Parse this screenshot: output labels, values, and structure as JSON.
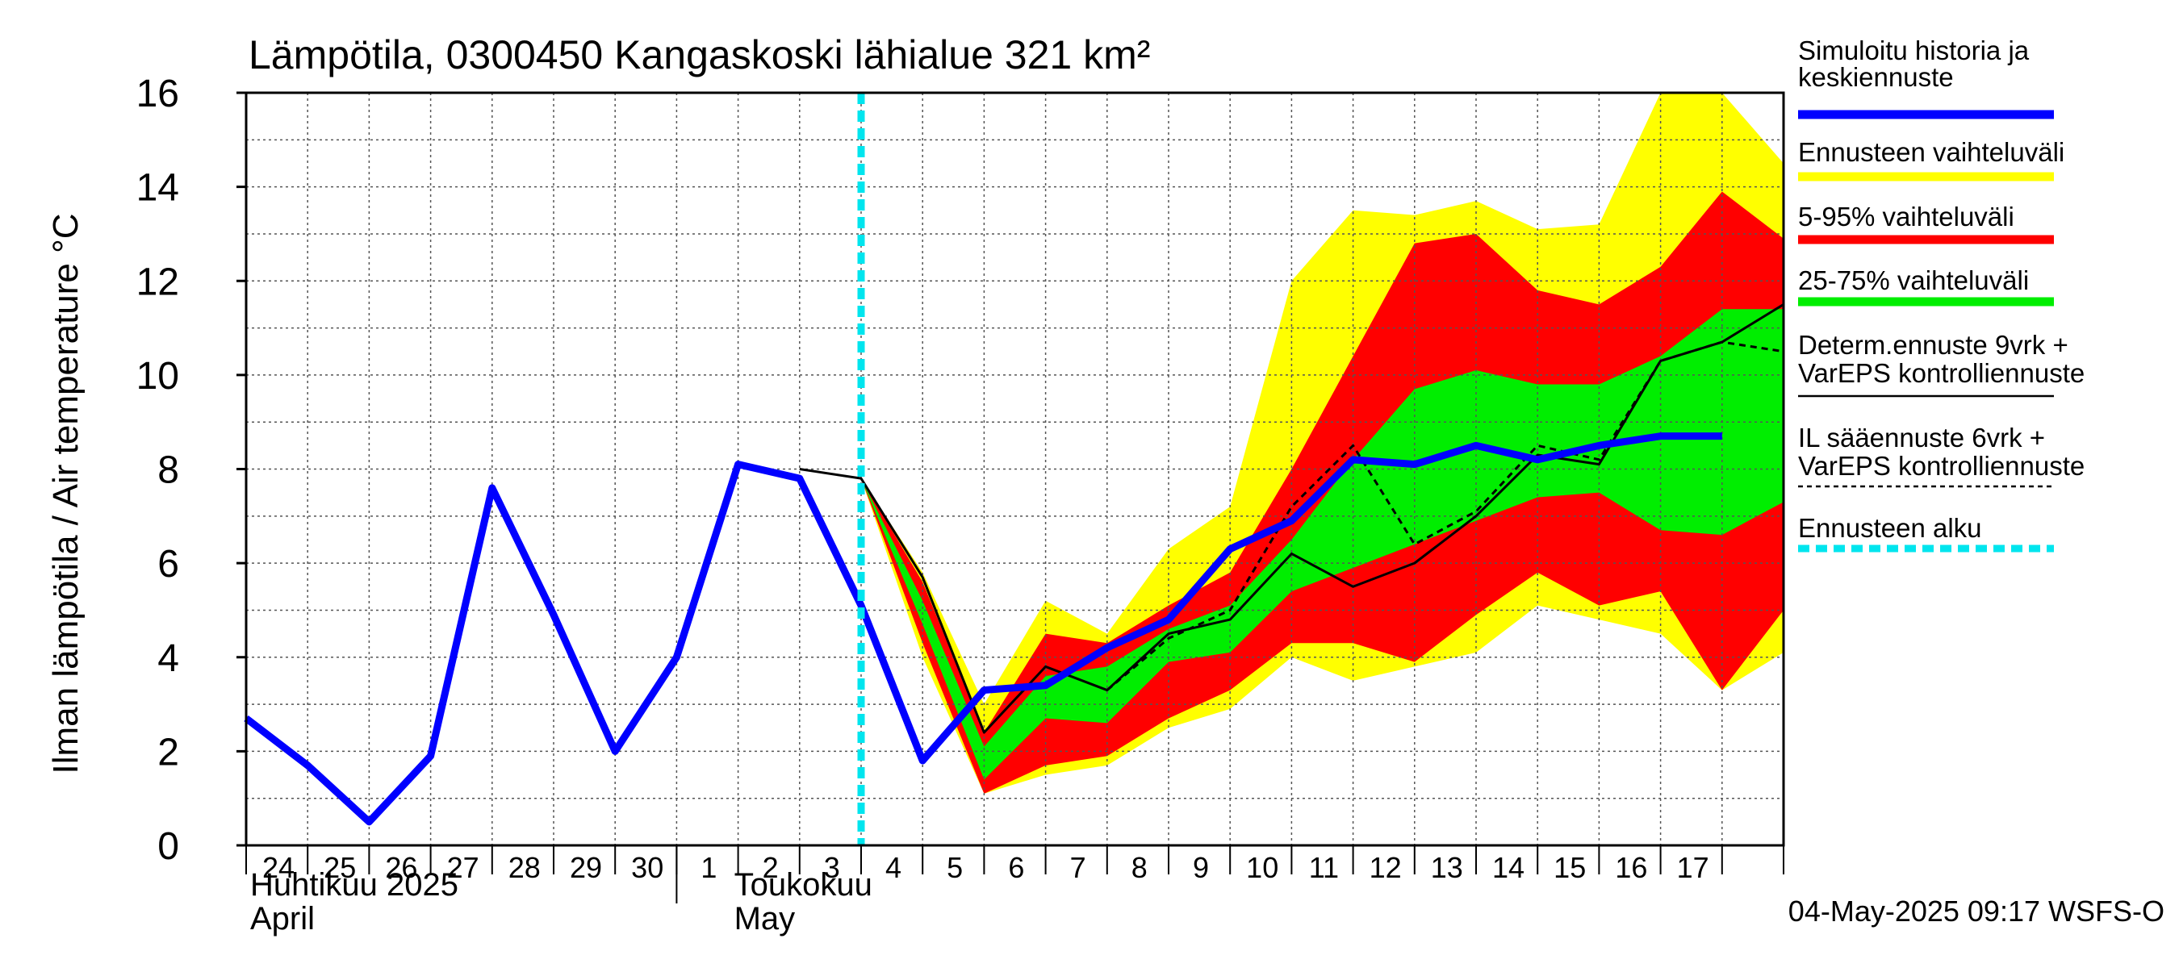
{
  "chart_data": {
    "type": "area",
    "title": "Lämpötila, 0300450 Kangaskoski lähialue 321 km²",
    "ylabel": "Ilman lämpötila / Air temperature   °C",
    "ylim": [
      0,
      16
    ],
    "y_ticks": [
      "0",
      "2",
      "4",
      "6",
      "8",
      "10",
      "12",
      "14",
      "16"
    ],
    "x_start": "2025-04-24",
    "x_end": "2025-05-17",
    "x_tick_labels": [
      "24",
      "25",
      "26",
      "27",
      "28",
      "29",
      "30",
      "1",
      "2",
      "3",
      "4",
      "5",
      "6",
      "7",
      "8",
      "9",
      "10",
      "11",
      "12",
      "13",
      "14",
      "15",
      "16",
      "17"
    ],
    "month_labels": {
      "april_fi": "Huhtikuu  2025",
      "april_en": "April",
      "may_fi": "Toukokuu",
      "may_en": "May"
    },
    "forecast_start": "2025-05-04",
    "grid": true,
    "footer": "04-May-2025 09:17 WSFS-O",
    "legend": [
      {
        "key": "history",
        "label_lines": [
          "Simuloitu historia ja",
          "keskiennuste"
        ],
        "color": "#0000ff",
        "style": "thick"
      },
      {
        "key": "yellow",
        "label_lines": [
          "Ennusteen vaihteluväli"
        ],
        "color": "#ffff00",
        "style": "thick"
      },
      {
        "key": "red",
        "label_lines": [
          "5-95% vaihteluväli"
        ],
        "color": "#ff0000",
        "style": "thick"
      },
      {
        "key": "green",
        "label_lines": [
          "25-75% vaihteluväli"
        ],
        "color": "#00ee00",
        "style": "thick"
      },
      {
        "key": "determ",
        "label_lines": [
          "Determ.ennuste 9vrk  +",
          "VarEPS kontrolliennuste"
        ],
        "color": "#000000",
        "style": "solid"
      },
      {
        "key": "il",
        "label_lines": [
          "IL sääennuste 6vrk  +",
          "  VarEPS kontrolliennuste"
        ],
        "color": "#000000",
        "style": "dashed"
      },
      {
        "key": "start",
        "label_lines": [
          "Ennusteen alku"
        ],
        "color": "#00e5ee",
        "style": "dotted"
      }
    ],
    "series": {
      "yellow_band": {
        "color": "#ffff00",
        "upper": [
          [
            10,
            7.8
          ],
          [
            11,
            5.8
          ],
          [
            12,
            3.0
          ],
          [
            13,
            5.2
          ],
          [
            14,
            4.5
          ],
          [
            15,
            6.3
          ],
          [
            16,
            7.2
          ],
          [
            17,
            12.0
          ],
          [
            18,
            13.5
          ],
          [
            19,
            13.4
          ],
          [
            20,
            13.7
          ],
          [
            21,
            13.1
          ],
          [
            22,
            13.2
          ],
          [
            23,
            16.0
          ],
          [
            24,
            16.0
          ],
          [
            25,
            14.5
          ]
        ],
        "lower": [
          [
            10,
            7.8
          ],
          [
            11,
            4.0
          ],
          [
            12,
            1.1
          ],
          [
            13,
            1.5
          ],
          [
            14,
            1.7
          ],
          [
            15,
            2.5
          ],
          [
            16,
            2.9
          ],
          [
            17,
            4.0
          ],
          [
            18,
            3.5
          ],
          [
            19,
            3.8
          ],
          [
            20,
            4.1
          ],
          [
            21,
            5.1
          ],
          [
            22,
            4.8
          ],
          [
            23,
            4.5
          ],
          [
            24,
            3.3
          ],
          [
            25,
            4.1
          ]
        ]
      },
      "red_band": {
        "color": "#ff0000",
        "upper": [
          [
            10,
            7.8
          ],
          [
            11,
            5.6
          ],
          [
            12,
            2.4
          ],
          [
            13,
            4.5
          ],
          [
            14,
            4.3
          ],
          [
            15,
            5.1
          ],
          [
            16,
            5.8
          ],
          [
            17,
            8.0
          ],
          [
            18,
            10.4
          ],
          [
            19,
            12.8
          ],
          [
            20,
            13.0
          ],
          [
            21,
            11.8
          ],
          [
            22,
            11.5
          ],
          [
            23,
            12.3
          ],
          [
            24,
            13.9
          ],
          [
            25,
            12.9
          ]
        ],
        "lower": [
          [
            10,
            7.8
          ],
          [
            11,
            4.3
          ],
          [
            12,
            1.1
          ],
          [
            13,
            1.7
          ],
          [
            14,
            1.9
          ],
          [
            15,
            2.7
          ],
          [
            16,
            3.3
          ],
          [
            17,
            4.3
          ],
          [
            18,
            4.3
          ],
          [
            19,
            3.9
          ],
          [
            20,
            4.9
          ],
          [
            21,
            5.8
          ],
          [
            22,
            5.1
          ],
          [
            23,
            5.4
          ],
          [
            24,
            3.3
          ],
          [
            25,
            5.0
          ]
        ]
      },
      "green_band": {
        "color": "#00ee00",
        "upper": [
          [
            10,
            7.8
          ],
          [
            11,
            5.2
          ],
          [
            12,
            2.1
          ],
          [
            13,
            3.6
          ],
          [
            14,
            3.8
          ],
          [
            15,
            4.6
          ],
          [
            16,
            5.1
          ],
          [
            17,
            6.5
          ],
          [
            18,
            8.2
          ],
          [
            19,
            9.7
          ],
          [
            20,
            10.1
          ],
          [
            21,
            9.8
          ],
          [
            22,
            9.8
          ],
          [
            23,
            10.4
          ],
          [
            24,
            11.4
          ],
          [
            25,
            11.4
          ]
        ],
        "lower": [
          [
            10,
            7.8
          ],
          [
            11,
            4.7
          ],
          [
            12,
            1.4
          ],
          [
            13,
            2.7
          ],
          [
            14,
            2.6
          ],
          [
            15,
            3.9
          ],
          [
            16,
            4.1
          ],
          [
            17,
            5.4
          ],
          [
            18,
            5.9
          ],
          [
            19,
            6.4
          ],
          [
            20,
            6.9
          ],
          [
            21,
            7.4
          ],
          [
            22,
            7.5
          ],
          [
            23,
            6.7
          ],
          [
            24,
            6.6
          ],
          [
            25,
            7.3
          ]
        ]
      },
      "determ": {
        "name": "Determ.ennuste 9vrk + VarEPS kontrolliennuste",
        "color": "#000000",
        "points": [
          [
            9,
            8.0
          ],
          [
            10,
            7.8
          ],
          [
            11,
            5.7
          ],
          [
            12,
            2.4
          ],
          [
            13,
            3.8
          ],
          [
            14,
            3.3
          ],
          [
            15,
            4.5
          ],
          [
            16,
            4.8
          ],
          [
            17,
            6.2
          ],
          [
            18,
            5.5
          ],
          [
            19,
            6.0
          ],
          [
            20,
            7.0
          ],
          [
            21,
            8.3
          ],
          [
            22,
            8.1
          ],
          [
            23,
            10.3
          ],
          [
            24,
            10.7
          ],
          [
            25,
            11.5
          ]
        ]
      },
      "il": {
        "name": "IL sääennuste 6vrk + VarEPS kontrolliennuste",
        "color": "#000000",
        "points": [
          [
            14,
            3.3
          ],
          [
            15,
            4.4
          ],
          [
            16,
            5.0
          ],
          [
            17,
            7.2
          ],
          [
            18,
            8.5
          ],
          [
            19,
            6.4
          ],
          [
            20,
            7.1
          ],
          [
            21,
            8.5
          ],
          [
            22,
            8.2
          ],
          [
            23,
            10.3
          ],
          [
            24,
            10.7
          ],
          [
            25,
            10.5
          ]
        ]
      },
      "history": {
        "name": "Simuloitu historia ja keskiennuste",
        "color": "#0000ff",
        "points": [
          [
            0,
            2.7
          ],
          [
            1,
            1.7
          ],
          [
            2,
            0.5
          ],
          [
            3,
            1.9
          ],
          [
            4,
            7.6
          ],
          [
            5,
            4.9
          ],
          [
            6,
            2.0
          ],
          [
            7,
            4.0
          ],
          [
            8,
            8.1
          ],
          [
            9,
            7.8
          ],
          [
            10,
            5.1
          ],
          [
            11,
            1.8
          ],
          [
            12,
            3.3
          ],
          [
            13,
            3.4
          ],
          [
            14,
            4.2
          ],
          [
            15,
            4.8
          ],
          [
            16,
            6.3
          ],
          [
            17,
            6.9
          ],
          [
            18,
            8.2
          ],
          [
            19,
            8.1
          ],
          [
            20,
            8.5
          ],
          [
            21,
            8.2
          ],
          [
            22,
            8.5
          ],
          [
            23,
            8.7
          ],
          [
            24,
            8.7
          ]
        ]
      }
    }
  }
}
